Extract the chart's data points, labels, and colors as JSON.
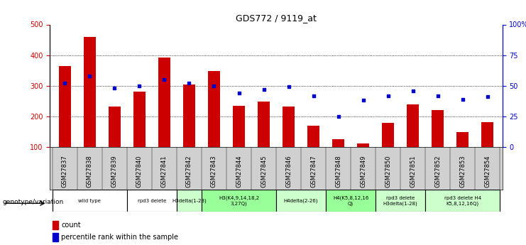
{
  "title": "GDS772 / 9119_at",
  "samples": [
    "GSM27837",
    "GSM27838",
    "GSM27839",
    "GSM27840",
    "GSM27841",
    "GSM27842",
    "GSM27843",
    "GSM27844",
    "GSM27845",
    "GSM27846",
    "GSM27847",
    "GSM27848",
    "GSM27849",
    "GSM27850",
    "GSM27851",
    "GSM27852",
    "GSM27853",
    "GSM27854"
  ],
  "counts": [
    365,
    460,
    232,
    280,
    393,
    305,
    348,
    235,
    248,
    233,
    170,
    125,
    112,
    178,
    240,
    220,
    148,
    182
  ],
  "percentiles": [
    52,
    58,
    48,
    50,
    55,
    52,
    50,
    44,
    47,
    49,
    42,
    25,
    38,
    42,
    46,
    42,
    39,
    41
  ],
  "ymin": 100,
  "ymax": 500,
  "groups": [
    {
      "label": "wild type",
      "start": 0,
      "end": 3,
      "color": "#ffffff"
    },
    {
      "label": "rpd3 delete",
      "start": 3,
      "end": 5,
      "color": "#ffffff"
    },
    {
      "label": "H3delta(1-28)",
      "start": 5,
      "end": 6,
      "color": "#ccffcc"
    },
    {
      "label": "H3(K4,9,14,18,2\n3,27Q)",
      "start": 6,
      "end": 9,
      "color": "#99ff99"
    },
    {
      "label": "H4delta(2-26)",
      "start": 9,
      "end": 11,
      "color": "#ccffcc"
    },
    {
      "label": "H4(K5,8,12,16\nQ)",
      "start": 11,
      "end": 13,
      "color": "#99ff99"
    },
    {
      "label": "rpd3 delete\nH3delta(1-28)",
      "start": 13,
      "end": 15,
      "color": "#ccffcc"
    },
    {
      "label": "rpd3 delete H4\nK5,8,12,16Q)",
      "start": 15,
      "end": 18,
      "color": "#ccffcc"
    }
  ],
  "bar_color": "#cc0000",
  "dot_color": "#0000cc",
  "label_bg": "#d0d0d0",
  "bar_width": 0.5
}
